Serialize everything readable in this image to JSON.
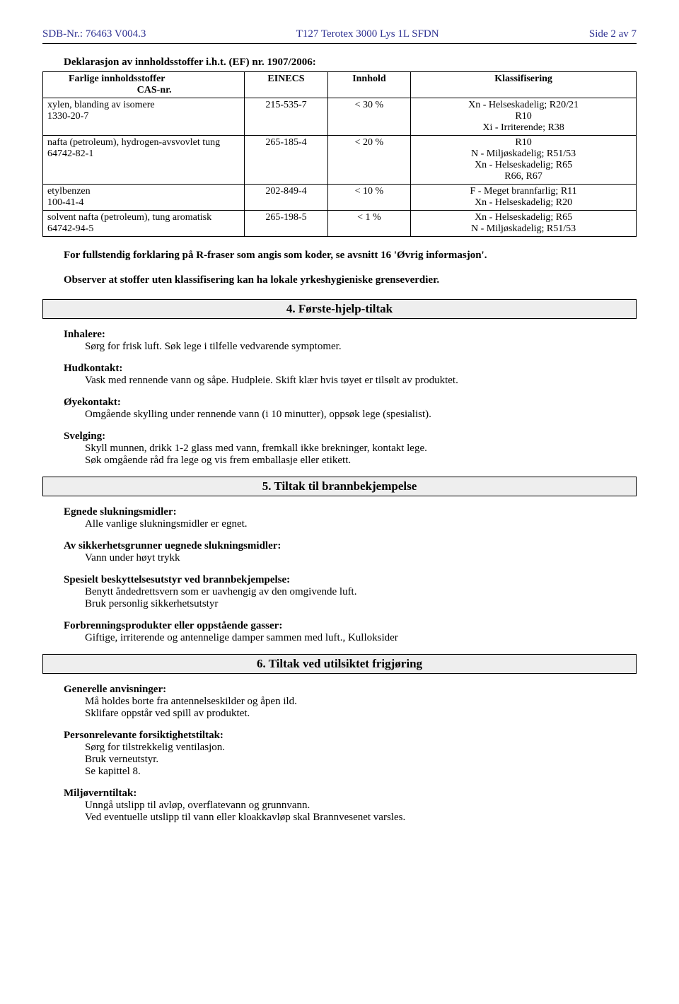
{
  "header": {
    "left": "SDB-Nr.: 76463  V004.3",
    "center": "T127 Terotex 3000 Lys 1L SFDN",
    "right": "Side 2 av 7"
  },
  "declaration_title": "Deklarasjon av innholdsstoffer  i.h.t. (EF) nr. 1907/2006:",
  "table": {
    "col_widths": [
      "34%",
      "14%",
      "14%",
      "38%"
    ],
    "header": {
      "c1a": "Farlige innholdsstoffer",
      "c1b": "CAS-nr.",
      "c2": "EINECS",
      "c3": "Innhold",
      "c4": "Klassifisering"
    },
    "rows": [
      {
        "c1a": "xylen, blanding av isomere",
        "c1b": "1330-20-7",
        "c2": "215-535-7",
        "c3": "<  30  %",
        "c4a": "Xn - Helseskadelig;  R20/21",
        "c4b": "R10",
        "c4c": "Xi - Irriterende;  R38"
      },
      {
        "c1a": "nafta (petroleum), hydrogen-avsvovlet tung",
        "c1b": "64742-82-1",
        "c2": "265-185-4",
        "c3": "<  20  %",
        "c4a": "R10",
        "c4b": "N - Miljøskadelig;  R51/53",
        "c4c": "Xn - Helseskadelig;  R65",
        "c4d": "R66, R67"
      },
      {
        "c1a": "etylbenzen",
        "c1b": "100-41-4",
        "c2": "202-849-4",
        "c3": "<  10  %",
        "c4a": "F - Meget brannfarlig;  R11",
        "c4b": "Xn - Helseskadelig;  R20"
      },
      {
        "c1a": "solvent nafta (petroleum), tung aromatisk",
        "c1b": "64742-94-5",
        "c2": "265-198-5",
        "c3": "<   1  %",
        "c4a": "Xn - Helseskadelig;  R65",
        "c4b": "N - Miljøskadelig;  R51/53"
      }
    ]
  },
  "footnote1": "For fullstendig forklaring på R-fraser som angis som koder, se avsnitt 16 'Øvrig informasjon'.",
  "footnote2": "Observer at stoffer uten klassifisering kan ha lokale yrkeshygieniske grenseverdier.",
  "sections": {
    "s4": {
      "title": "4.  Første-hjelp-tiltak",
      "blocks": [
        {
          "label": "Inhalere:",
          "lines": [
            "Sørg for frisk luft. Søk lege i tilfelle vedvarende symptomer."
          ]
        },
        {
          "label": "Hudkontakt:",
          "lines": [
            "Vask med rennende vann og såpe. Hudpleie. Skift klær hvis tøyet er tilsølt av produktet."
          ]
        },
        {
          "label": "Øyekontakt:",
          "lines": [
            "Omgående skylling under rennende vann (i 10 minutter), oppsøk lege (spesialist)."
          ]
        },
        {
          "label": "Svelging:",
          "lines": [
            "Skyll munnen, drikk 1-2 glass med vann, fremkall ikke brekninger, kontakt lege.",
            "Søk omgående råd fra lege og vis frem emballasje eller etikett."
          ]
        }
      ]
    },
    "s5": {
      "title": "5.  Tiltak til brannbekjempelse",
      "blocks": [
        {
          "label": "Egnede slukningsmidler:",
          "lines": [
            "Alle vanlige slukningsmidler er egnet."
          ]
        },
        {
          "label": "Av sikkerhetsgrunner uegnede slukningsmidler:",
          "lines": [
            "Vann under høyt trykk"
          ]
        },
        {
          "label": "Spesielt beskyttelsesutstyr ved brannbekjempelse:",
          "lines": [
            "Benytt åndedrettsvern som er uavhengig av den omgivende luft.",
            "Bruk personlig sikkerhetsutstyr"
          ]
        },
        {
          "label": "Forbrenningsprodukter eller oppstående gasser:",
          "lines": [
            "Giftige, irriterende og antennelige damper sammen med luft., Kulloksider"
          ]
        }
      ]
    },
    "s6": {
      "title": "6.  Tiltak ved utilsiktet frigjøring",
      "blocks": [
        {
          "label": "Generelle anvisninger:",
          "lines": [
            "Må holdes borte fra antennelseskilder og åpen ild.",
            "Sklifare oppstår ved spill av produktet."
          ]
        },
        {
          "label": "Personrelevante forsiktighetstiltak:",
          "lines": [
            "Sørg for tilstrekkelig ventilasjon.",
            "Bruk verneutstyr.",
            "Se kapittel 8."
          ]
        },
        {
          "label": "Miljøverntiltak:",
          "lines": [
            "Unngå utslipp til avløp, overflatevann og grunnvann.",
            "Ved eventuelle utslipp til vann eller kloakkavløp skal Brannvesenet varsles."
          ]
        }
      ]
    }
  }
}
